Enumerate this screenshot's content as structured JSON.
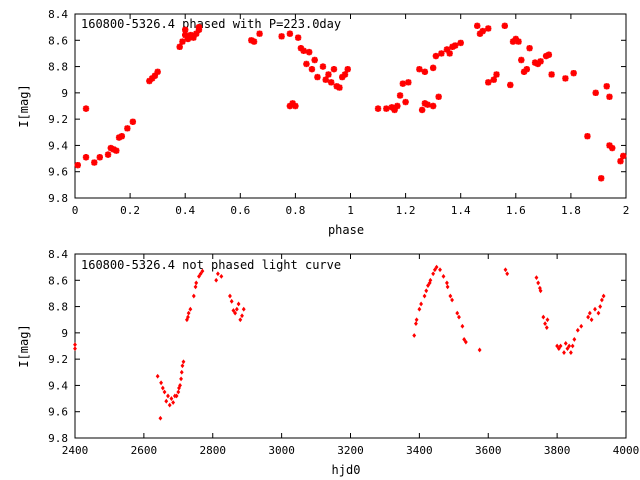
{
  "chart_data": [
    {
      "type": "scatter",
      "title": "160800-5326.4 phased with P=223.0day",
      "xlabel": "phase",
      "ylabel": "I[mag]",
      "xlim": [
        0,
        2
      ],
      "ylim": [
        9.8,
        8.4
      ],
      "y_inverted": true,
      "xticks": [
        "0",
        "0.2",
        "0.4",
        "0.6",
        "0.8",
        "1",
        "1.2",
        "1.4",
        "1.6",
        "1.8",
        "2"
      ],
      "yticks": [
        "8.4",
        "8.6",
        "8.8",
        "9",
        "9.2",
        "9.4",
        "9.6",
        "9.8"
      ],
      "grid": false,
      "color": "#ff0000",
      "points": [
        [
          0.01,
          9.55
        ],
        [
          0.04,
          9.12
        ],
        [
          0.04,
          9.49
        ],
        [
          0.07,
          9.53
        ],
        [
          0.09,
          9.49
        ],
        [
          0.12,
          9.47
        ],
        [
          0.13,
          9.42
        ],
        [
          0.14,
          9.43
        ],
        [
          0.15,
          9.44
        ],
        [
          0.16,
          9.34
        ],
        [
          0.17,
          9.33
        ],
        [
          0.19,
          9.27
        ],
        [
          0.21,
          9.22
        ],
        [
          0.27,
          8.91
        ],
        [
          0.28,
          8.89
        ],
        [
          0.29,
          8.87
        ],
        [
          0.3,
          8.84
        ],
        [
          0.38,
          8.65
        ],
        [
          0.39,
          8.61
        ],
        [
          0.4,
          8.56
        ],
        [
          0.4,
          8.52
        ],
        [
          0.41,
          8.59
        ],
        [
          0.42,
          8.56
        ],
        [
          0.43,
          8.58
        ],
        [
          0.44,
          8.55
        ],
        [
          0.45,
          8.52
        ],
        [
          0.45,
          8.5
        ],
        [
          0.64,
          8.6
        ],
        [
          0.65,
          8.61
        ],
        [
          0.67,
          8.55
        ],
        [
          0.75,
          8.57
        ],
        [
          0.78,
          8.55
        ],
        [
          0.78,
          9.1
        ],
        [
          0.79,
          9.08
        ],
        [
          0.8,
          9.1
        ],
        [
          0.81,
          8.58
        ],
        [
          0.82,
          8.66
        ],
        [
          0.83,
          8.68
        ],
        [
          0.84,
          8.78
        ],
        [
          0.85,
          8.69
        ],
        [
          0.86,
          8.82
        ],
        [
          0.87,
          8.75
        ],
        [
          0.88,
          8.88
        ],
        [
          0.9,
          8.8
        ],
        [
          0.91,
          8.9
        ],
        [
          0.92,
          8.86
        ],
        [
          0.93,
          8.92
        ],
        [
          0.94,
          8.82
        ],
        [
          0.95,
          8.95
        ],
        [
          0.96,
          8.96
        ],
        [
          0.97,
          8.88
        ],
        [
          0.98,
          8.86
        ],
        [
          0.99,
          8.82
        ],
        [
          1.1,
          9.12
        ],
        [
          1.13,
          9.12
        ],
        [
          1.15,
          9.11
        ],
        [
          1.16,
          9.13
        ],
        [
          1.17,
          9.1
        ],
        [
          1.18,
          9.02
        ],
        [
          1.19,
          8.93
        ],
        [
          1.2,
          9.07
        ],
        [
          1.21,
          8.92
        ],
        [
          1.25,
          8.82
        ],
        [
          1.26,
          9.13
        ],
        [
          1.27,
          8.84
        ],
        [
          1.27,
          9.08
        ],
        [
          1.28,
          9.09
        ],
        [
          1.3,
          8.81
        ],
        [
          1.3,
          9.1
        ],
        [
          1.31,
          8.72
        ],
        [
          1.32,
          9.03
        ],
        [
          1.33,
          8.7
        ],
        [
          1.35,
          8.67
        ],
        [
          1.36,
          8.7
        ],
        [
          1.37,
          8.65
        ],
        [
          1.38,
          8.64
        ],
        [
          1.4,
          8.62
        ],
        [
          1.46,
          8.49
        ],
        [
          1.47,
          8.55
        ],
        [
          1.48,
          8.53
        ],
        [
          1.5,
          8.51
        ],
        [
          1.5,
          8.92
        ],
        [
          1.52,
          8.9
        ],
        [
          1.53,
          8.86
        ],
        [
          1.56,
          8.49
        ],
        [
          1.58,
          8.94
        ],
        [
          1.59,
          8.61
        ],
        [
          1.6,
          8.59
        ],
        [
          1.61,
          8.61
        ],
        [
          1.62,
          8.75
        ],
        [
          1.63,
          8.84
        ],
        [
          1.64,
          8.82
        ],
        [
          1.65,
          8.66
        ],
        [
          1.67,
          8.77
        ],
        [
          1.68,
          8.78
        ],
        [
          1.69,
          8.76
        ],
        [
          1.71,
          8.72
        ],
        [
          1.72,
          8.71
        ],
        [
          1.73,
          8.86
        ],
        [
          1.78,
          8.89
        ],
        [
          1.81,
          8.85
        ],
        [
          1.86,
          9.33
        ],
        [
          1.89,
          9.0
        ],
        [
          1.91,
          9.65
        ],
        [
          1.93,
          8.95
        ],
        [
          1.94,
          9.03
        ],
        [
          1.94,
          9.4
        ],
        [
          1.95,
          9.42
        ],
        [
          1.98,
          9.52
        ],
        [
          1.99,
          9.48
        ]
      ]
    },
    {
      "type": "scatter",
      "title": "160800-5326.4 not phased light curve",
      "xlabel": "hjd0",
      "ylabel": "I[mag]",
      "xlim": [
        2400,
        4000
      ],
      "ylim": [
        9.8,
        8.4
      ],
      "y_inverted": true,
      "xticks": [
        "2400",
        "2600",
        "2800",
        "3000",
        "3200",
        "3400",
        "3600",
        "3800",
        "4000"
      ],
      "yticks": [
        "8.4",
        "8.6",
        "8.8",
        "9",
        "9.2",
        "9.4",
        "9.6",
        "9.8"
      ],
      "grid": false,
      "color": "#ff0000",
      "points": [
        [
          2400,
          9.09
        ],
        [
          2400,
          9.12
        ],
        [
          2640,
          9.33
        ],
        [
          2648,
          9.65
        ],
        [
          2650,
          9.38
        ],
        [
          2655,
          9.42
        ],
        [
          2660,
          9.45
        ],
        [
          2665,
          9.52
        ],
        [
          2670,
          9.48
        ],
        [
          2675,
          9.55
        ],
        [
          2680,
          9.5
        ],
        [
          2685,
          9.53
        ],
        [
          2690,
          9.48
        ],
        [
          2695,
          9.48
        ],
        [
          2700,
          9.45
        ],
        [
          2702,
          9.42
        ],
        [
          2705,
          9.4
        ],
        [
          2708,
          9.35
        ],
        [
          2710,
          9.3
        ],
        [
          2712,
          9.25
        ],
        [
          2715,
          9.22
        ],
        [
          2725,
          8.9
        ],
        [
          2728,
          8.88
        ],
        [
          2730,
          8.85
        ],
        [
          2735,
          8.82
        ],
        [
          2745,
          8.72
        ],
        [
          2750,
          8.65
        ],
        [
          2752,
          8.62
        ],
        [
          2760,
          8.57
        ],
        [
          2765,
          8.55
        ],
        [
          2770,
          8.53
        ],
        [
          2810,
          8.6
        ],
        [
          2815,
          8.55
        ],
        [
          2825,
          8.57
        ],
        [
          2850,
          8.72
        ],
        [
          2855,
          8.76
        ],
        [
          2860,
          8.83
        ],
        [
          2865,
          8.85
        ],
        [
          2870,
          8.82
        ],
        [
          2875,
          8.78
        ],
        [
          2880,
          8.9
        ],
        [
          2885,
          8.87
        ],
        [
          2890,
          8.82
        ],
        [
          3385,
          9.02
        ],
        [
          3390,
          8.93
        ],
        [
          3392,
          8.9
        ],
        [
          3400,
          8.82
        ],
        [
          3405,
          8.78
        ],
        [
          3415,
          8.72
        ],
        [
          3420,
          8.68
        ],
        [
          3425,
          8.64
        ],
        [
          3430,
          8.62
        ],
        [
          3432,
          8.6
        ],
        [
          3440,
          8.55
        ],
        [
          3445,
          8.52
        ],
        [
          3450,
          8.5
        ],
        [
          3460,
          8.52
        ],
        [
          3470,
          8.57
        ],
        [
          3480,
          8.62
        ],
        [
          3482,
          8.65
        ],
        [
          3490,
          8.72
        ],
        [
          3495,
          8.75
        ],
        [
          3510,
          8.85
        ],
        [
          3515,
          8.88
        ],
        [
          3525,
          8.95
        ],
        [
          3530,
          9.05
        ],
        [
          3535,
          9.07
        ],
        [
          3575,
          9.13
        ],
        [
          3650,
          8.52
        ],
        [
          3655,
          8.55
        ],
        [
          3740,
          8.58
        ],
        [
          3745,
          8.62
        ],
        [
          3750,
          8.66
        ],
        [
          3752,
          8.68
        ],
        [
          3760,
          8.88
        ],
        [
          3765,
          8.93
        ],
        [
          3770,
          8.96
        ],
        [
          3772,
          8.9
        ],
        [
          3800,
          9.1
        ],
        [
          3805,
          9.12
        ],
        [
          3810,
          9.1
        ],
        [
          3820,
          9.15
        ],
        [
          3825,
          9.08
        ],
        [
          3830,
          9.12
        ],
        [
          3835,
          9.1
        ],
        [
          3840,
          9.15
        ],
        [
          3845,
          9.1
        ],
        [
          3850,
          9.05
        ],
        [
          3860,
          8.98
        ],
        [
          3870,
          8.95
        ],
        [
          3890,
          8.88
        ],
        [
          3895,
          8.85
        ],
        [
          3900,
          8.9
        ],
        [
          3910,
          8.82
        ],
        [
          3920,
          8.85
        ],
        [
          3925,
          8.8
        ],
        [
          3930,
          8.75
        ],
        [
          3935,
          8.72
        ]
      ]
    }
  ]
}
